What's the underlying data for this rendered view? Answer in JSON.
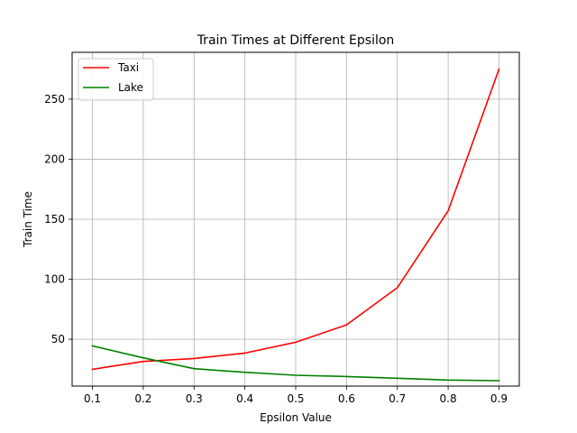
{
  "chart_data": {
    "type": "line",
    "title": "Train Times at Different Epsilon",
    "xlabel": "Epsilon Value",
    "ylabel": "Train Time",
    "x": [
      0.1,
      0.2,
      0.3,
      0.4,
      0.5,
      0.6,
      0.7,
      0.8,
      0.9
    ],
    "xlim": [
      0.06,
      0.94
    ],
    "ylim": [
      11,
      289
    ],
    "xticks": [
      "0.1",
      "0.2",
      "0.3",
      "0.4",
      "0.5",
      "0.6",
      "0.7",
      "0.8",
      "0.9"
    ],
    "yticks": [
      50,
      100,
      150,
      200,
      250
    ],
    "grid": true,
    "legend_position": "top-left",
    "series": [
      {
        "name": "Taxi",
        "color": "#ff0000",
        "values": [
          25,
          31.5,
          34,
          38.5,
          47.5,
          62,
          93,
          157,
          275
        ]
      },
      {
        "name": "Lake",
        "color": "#008000",
        "values": [
          44.5,
          34.5,
          25.5,
          22.5,
          20,
          19,
          17.5,
          16,
          15.5
        ]
      }
    ]
  }
}
